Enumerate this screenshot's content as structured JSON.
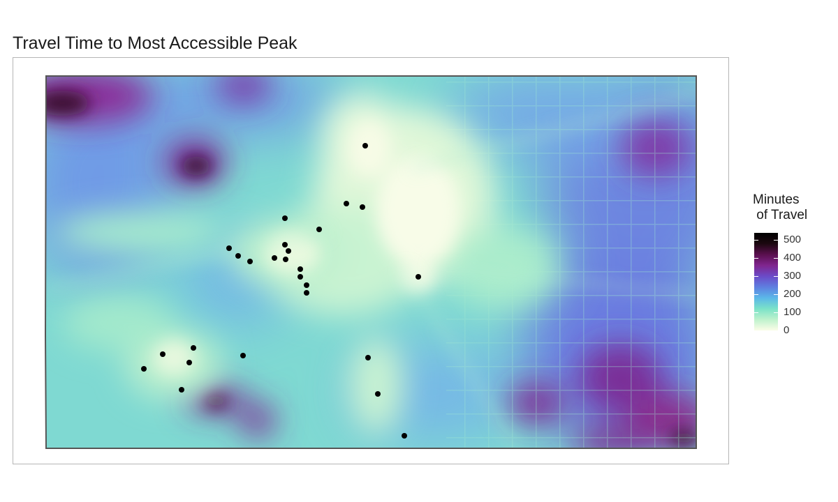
{
  "title": "Travel Time to Most Accessible Peak",
  "legend": {
    "title": "Minutes\n of Travel",
    "ticks": [
      {
        "label": "500",
        "value": 500
      },
      {
        "label": "400",
        "value": 400
      },
      {
        "label": "300",
        "value": 300
      },
      {
        "label": "200",
        "value": 200
      },
      {
        "label": "100",
        "value": 100
      },
      {
        "label": "0",
        "value": 0
      }
    ],
    "range": [
      0,
      540
    ],
    "colors": [
      "#fbfde8",
      "#bff2cd",
      "#7be2c8",
      "#5bb8e8",
      "#5e7fe0",
      "#6b4bc8",
      "#80258e",
      "#5a0f4e",
      "#1c0810",
      "#000000"
    ]
  },
  "map": {
    "background_colors": {
      "low": "#f6fbe2",
      "mid": "#9ee9c9",
      "blue": "#6f9de6",
      "purple": "#8a36a6",
      "dark": "#2a0820",
      "border": "#555555"
    },
    "peak_marker_color": "#000000"
  }
}
